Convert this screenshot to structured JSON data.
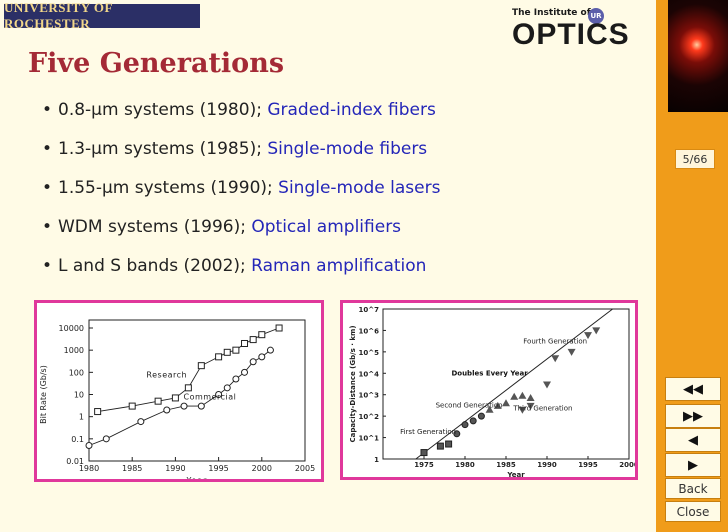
{
  "header": {
    "university": "UNIVERSITY OF ROCHESTER",
    "optics_small": "The Institute of",
    "optics_big": "OPTICS"
  },
  "slide": {
    "title": "Five Generations",
    "bullets": [
      {
        "text": "0.8-μm systems (1980); ",
        "highlight": "Graded-index fibers"
      },
      {
        "text": "1.3-μm systems (1985); ",
        "highlight": "Single-mode fibers"
      },
      {
        "text": "1.55-μm systems (1990); ",
        "highlight": "Single-mode lasers"
      },
      {
        "text": "WDM systems (1996); ",
        "highlight": "Optical amplifiers"
      },
      {
        "text": "L and S bands (2002); ",
        "highlight": "Raman amplification"
      }
    ]
  },
  "navigation": {
    "page": "5/66",
    "first_symbol": "◀◀",
    "last_symbol": "▶▶",
    "prev_symbol": "◀",
    "next_symbol": "▶",
    "back": "Back",
    "close": "Close"
  },
  "colors": {
    "title": "#a42a36",
    "highlight": "#2426b8",
    "sidebar": "#f09c1a",
    "panel_border": "#e0389b"
  },
  "chart_data": [
    {
      "type": "scatter",
      "xlabel": "Year",
      "ylabel": "Bit Rate (Gb/s)",
      "xlim": [
        1980,
        2005
      ],
      "ylim": [
        0.01,
        10000
      ],
      "log_y": true,
      "x_ticks": [
        "1980",
        "1985",
        "1990",
        "1995",
        "2000",
        "2005"
      ],
      "y_ticks": [
        "10000",
        "1000",
        "100",
        "10",
        "1",
        "0.1",
        "0.01"
      ],
      "series": [
        {
          "name": "Research",
          "marker": "square",
          "x": [
            1981,
            1985,
            1988,
            1990,
            1991.5,
            1993,
            1995,
            1996,
            1997,
            1998,
            1999,
            2000,
            2002
          ],
          "y": [
            1.7,
            3,
            5,
            7,
            20,
            200,
            500,
            800,
            1000,
            2000,
            3000,
            5000,
            10000
          ]
        },
        {
          "name": "Commercial",
          "marker": "circle",
          "x": [
            1980,
            1982,
            1986,
            1989,
            1991,
            1993,
            1995,
            1996,
            1997,
            1998,
            1999,
            2000,
            2001
          ],
          "y": [
            0.05,
            0.1,
            0.6,
            2,
            3,
            3,
            10,
            20,
            50,
            100,
            300,
            500,
            1000
          ]
        }
      ],
      "annotations": [
        "Research",
        "Commercial"
      ]
    },
    {
      "type": "scatter",
      "xlabel": "Year",
      "ylabel": "Capacity-Distance (Gb/s · km)",
      "xlim": [
        1970,
        2000
      ],
      "ylim": [
        1,
        10000000
      ],
      "log_y": true,
      "x_ticks": [
        "1975",
        "1980",
        "1985",
        "1990",
        "1995",
        "2000"
      ],
      "y_ticks": [
        "10^7",
        "10^6",
        "10^5",
        "10^4",
        "10^3",
        "10^2",
        "10^1",
        "1"
      ],
      "series": [
        {
          "marker": "square",
          "x": [
            1975,
            1977,
            1978
          ],
          "y": [
            2,
            4,
            5
          ]
        },
        {
          "marker": "circle",
          "x": [
            1979,
            1980,
            1981,
            1982
          ],
          "y": [
            15,
            40,
            60,
            100
          ]
        },
        {
          "marker": "triangle",
          "x": [
            1983,
            1984,
            1985,
            1986,
            1987,
            1988
          ],
          "y": [
            200,
            300,
            400,
            800,
            900,
            700
          ]
        },
        {
          "marker": "triangle-down",
          "x": [
            1987,
            1988,
            1990,
            1991,
            1993,
            1995,
            1996
          ],
          "y": [
            200,
            300,
            3000,
            50000,
            100000,
            600000,
            1000000
          ]
        }
      ],
      "annotations": [
        "First Generation",
        "Second Generation",
        "Third Generation",
        "Fourth Generation",
        "Doubles Every Year"
      ]
    }
  ]
}
